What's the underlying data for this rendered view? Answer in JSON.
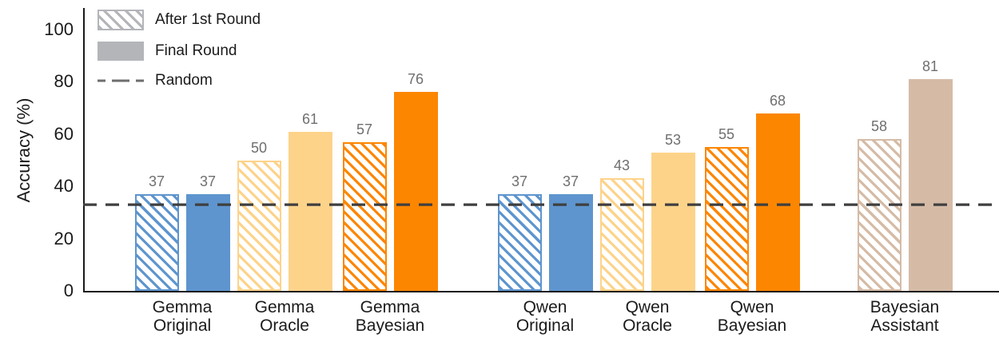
{
  "chart_data": {
    "type": "bar",
    "title": "",
    "xlabel": "",
    "ylabel": "Accuracy (%)",
    "ylim": [
      0,
      100
    ],
    "yticks": [
      0,
      20,
      40,
      60,
      80,
      100
    ],
    "grid": false,
    "legend": [
      "After 1st Round",
      "Final Round",
      "Random"
    ],
    "legend_position": "upper-left",
    "categories": [
      "Gemma Original",
      "Gemma Oracle",
      "Gemma Bayesian",
      "Qwen Original",
      "Qwen Oracle",
      "Qwen Bayesian",
      "Bayesian Assistant"
    ],
    "series": [
      {
        "name": "After 1st Round",
        "style": "hatched-diagonal",
        "values": [
          37,
          50,
          57,
          37,
          43,
          55,
          58
        ]
      },
      {
        "name": "Final Round",
        "style": "solid",
        "values": [
          37,
          61,
          76,
          37,
          53,
          68,
          81
        ]
      }
    ],
    "group_colors": [
      "#5e95ce",
      "#fdd38a",
      "#fc8600",
      "#5e95ce",
      "#fdd38a",
      "#fc8600",
      "#d5bba6"
    ],
    "random_baseline": 33,
    "colors": {
      "random_line": "#3f3f3f",
      "legend_gray": "#b3b5b9",
      "value_label": "#6f6f6f",
      "axis": "#1a1a1a"
    }
  }
}
